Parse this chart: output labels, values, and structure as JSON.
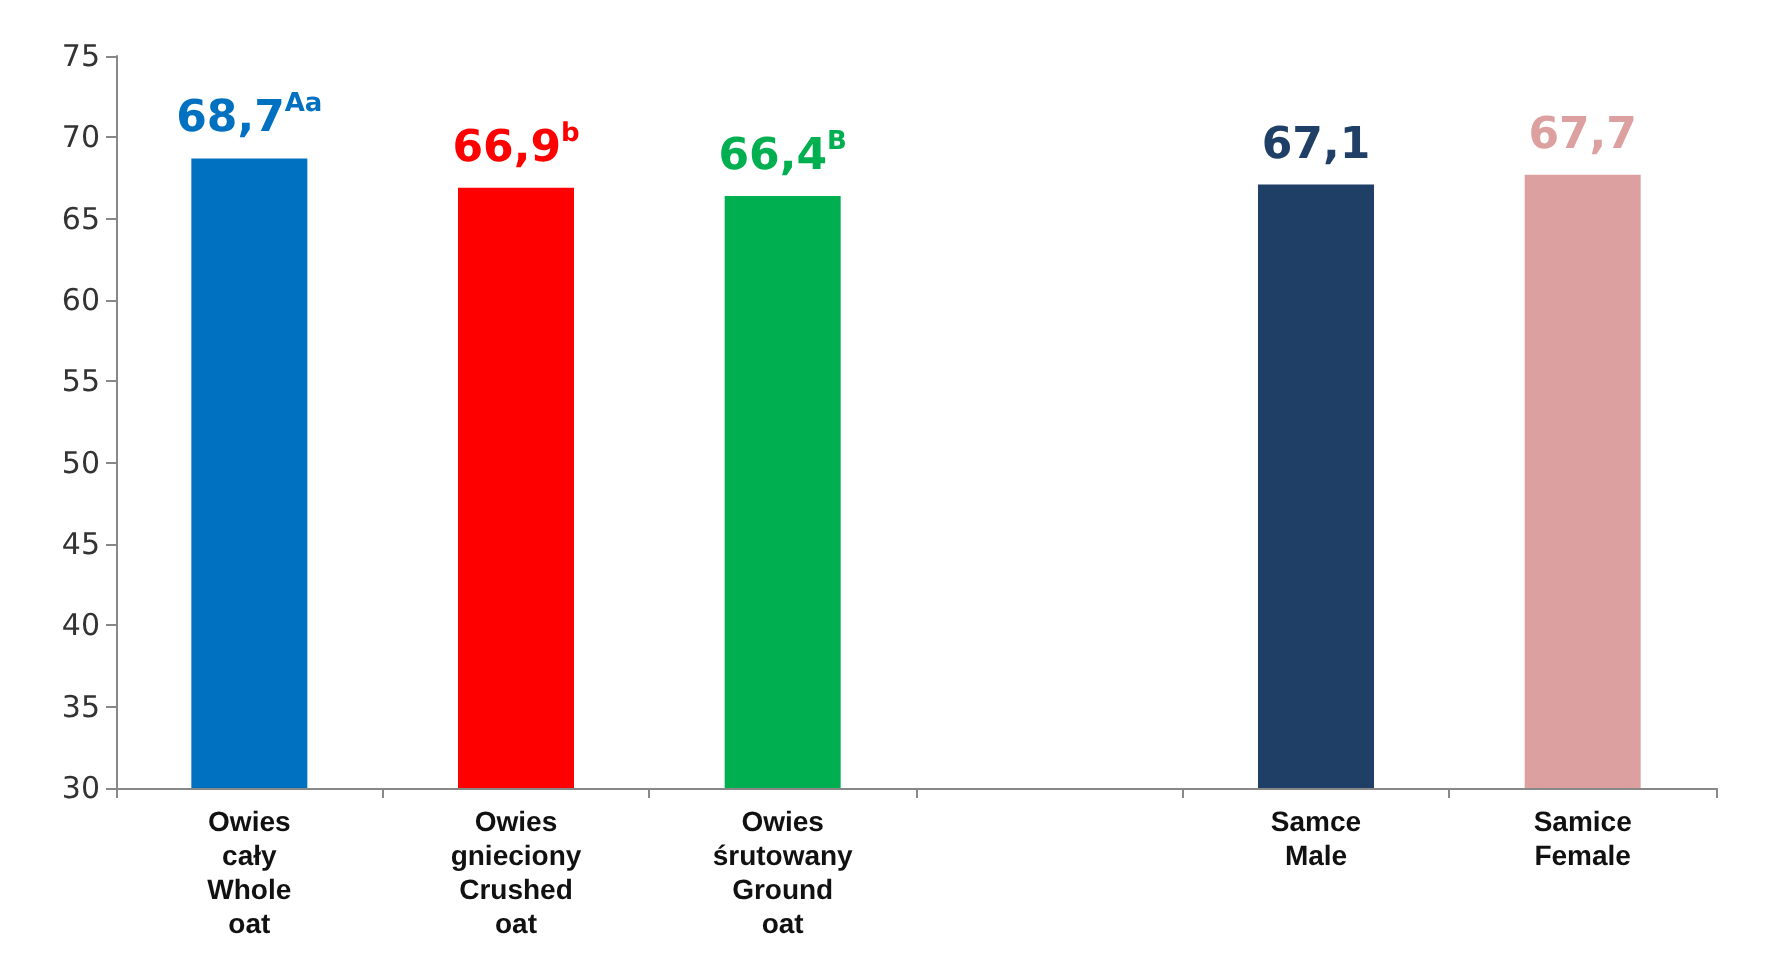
{
  "chart_data": {
    "type": "bar",
    "categories": [
      "Owies\ncały\nWhole\noat",
      "Owies\ngnieciony\nCrushed\noat",
      "Owies\nśrutowany\nGround\noat",
      null,
      "Samce\nMale",
      "Samice\nFemale"
    ],
    "values": [
      68.7,
      66.9,
      66.4,
      null,
      67.1,
      67.7
    ],
    "colors": [
      "#0070c0",
      "#ff0000",
      "#00b050",
      "#808080",
      "#1f3f66",
      "#dda0a0"
    ],
    "value_labels": [
      "68,7$^{Aa}$",
      "66,9$^{b}$",
      "66,4$^{B}$",
      null,
      "67,1",
      "67,7"
    ],
    "ylim": [
      30,
      75
    ],
    "yticks": [
      30,
      35,
      40,
      45,
      50,
      55,
      60,
      65,
      70,
      75
    ],
    "grid": false
  }
}
